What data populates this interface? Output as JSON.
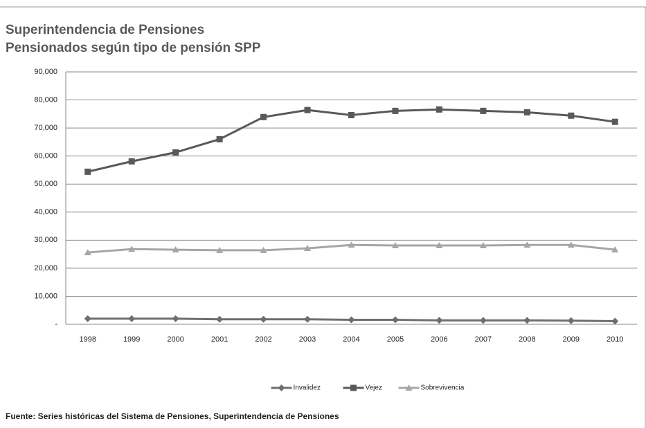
{
  "chart_data": {
    "type": "line",
    "title": "Superintendencia de Pensiones",
    "subtitle": "Pensionados según tipo de pensión SPP",
    "source": "Fuente:  Series históricas del Sistema de Pensiones, Superintendencia de Pensiones",
    "categories": [
      "1998",
      "1999",
      "2000",
      "2001",
      "2002",
      "2003",
      "2004",
      "2005",
      "2006",
      "2007",
      "2008",
      "2009",
      "2010"
    ],
    "series": [
      {
        "name": "Invalidez",
        "color": "#6e6e6e",
        "marker": "diamond",
        "values": [
          2000,
          2000,
          2000,
          1800,
          1800,
          1800,
          1600,
          1600,
          1400,
          1400,
          1400,
          1300,
          1100
        ]
      },
      {
        "name": "Vejez",
        "color": "#595959",
        "marker": "square",
        "values": [
          54400,
          58100,
          61300,
          66000,
          73900,
          76400,
          74600,
          76100,
          76600,
          76100,
          75600,
          74400,
          72200
        ]
      },
      {
        "name": "Sobrevivencia",
        "color": "#a6a6a6",
        "marker": "triangle",
        "values": [
          25600,
          26800,
          26600,
          26400,
          26400,
          27100,
          28300,
          28100,
          28100,
          28100,
          28300,
          28300,
          26600
        ]
      }
    ],
    "ylim": [
      0,
      90000
    ],
    "yticks": [
      {
        "value": 0,
        "label": "-"
      },
      {
        "value": 10000,
        "label": "10,000"
      },
      {
        "value": 20000,
        "label": "20,000"
      },
      {
        "value": 30000,
        "label": "30,000"
      },
      {
        "value": 40000,
        "label": "40,000"
      },
      {
        "value": 50000,
        "label": "50,000"
      },
      {
        "value": 60000,
        "label": "60,000"
      },
      {
        "value": 70000,
        "label": "70,000"
      },
      {
        "value": 80000,
        "label": "80,000"
      },
      {
        "value": 90000,
        "label": "90,000"
      }
    ],
    "grid": true,
    "legend": "bottom"
  }
}
